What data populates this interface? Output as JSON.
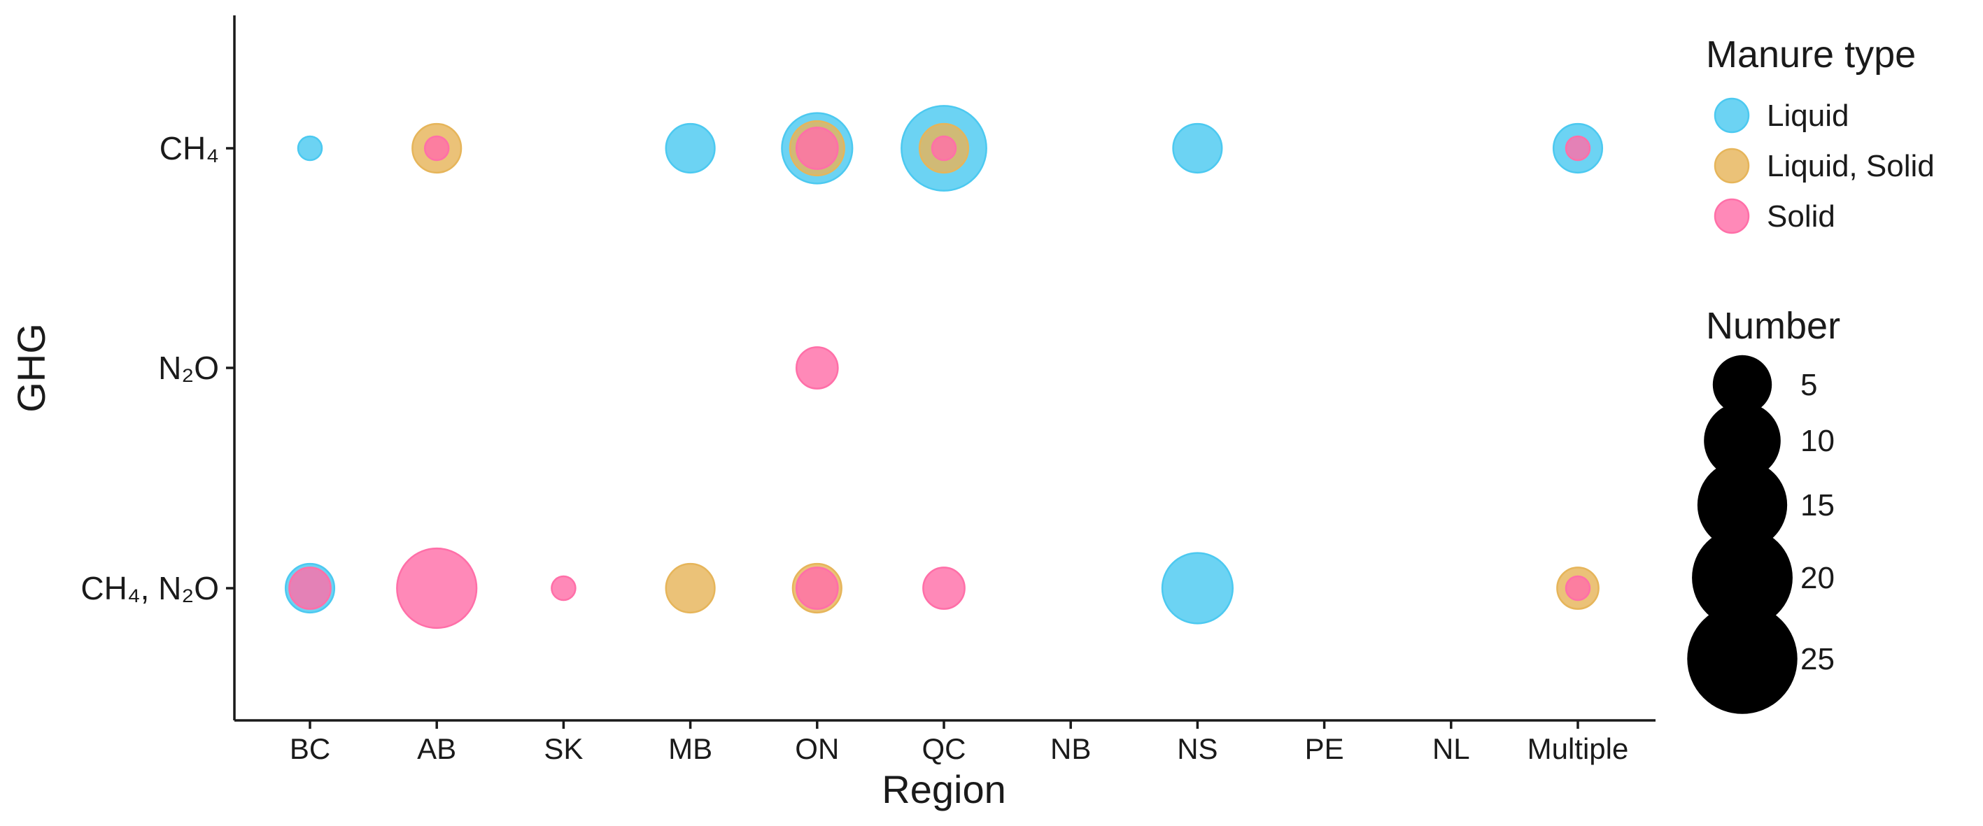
{
  "chart_data": {
    "type": "scatter",
    "subtype": "bubble",
    "xlabel": "Region",
    "ylabel": "GHG",
    "x_categories": [
      "BC",
      "AB",
      "SK",
      "MB",
      "ON",
      "QC",
      "NB",
      "NS",
      "PE",
      "NL",
      "Multiple"
    ],
    "y_categories": [
      "CH₄",
      "N₂O",
      "CH₄, N₂O"
    ],
    "grid": false,
    "legend_position": "right",
    "color_legend": {
      "title": "Manure type",
      "entries": [
        {
          "label": "Liquid",
          "color": "#4CC9F0"
        },
        {
          "label": "Liquid, Solid",
          "color": "#E6B55A"
        },
        {
          "label": "Solid",
          "color": "#FF6FA8"
        }
      ]
    },
    "size_legend": {
      "title": "Number",
      "values": [
        5,
        10,
        15,
        20,
        25
      ]
    },
    "series": [
      {
        "name": "Liquid",
        "color": "#4CC9F0",
        "points": [
          {
            "x": "BC",
            "y": "CH₄",
            "number": 1
          },
          {
            "x": "MB",
            "y": "CH₄",
            "number": 3
          },
          {
            "x": "ON",
            "y": "CH₄",
            "number": 8
          },
          {
            "x": "QC",
            "y": "CH₄",
            "number": 13
          },
          {
            "x": "NS",
            "y": "CH₄",
            "number": 3
          },
          {
            "x": "Multiple",
            "y": "CH₄",
            "number": 3
          },
          {
            "x": "BC",
            "y": "CH₄, N₂O",
            "number": 3
          },
          {
            "x": "NS",
            "y": "CH₄, N₂O",
            "number": 8
          }
        ]
      },
      {
        "name": "Liquid, Solid",
        "color": "#E6B55A",
        "points": [
          {
            "x": "AB",
            "y": "CH₄",
            "number": 3
          },
          {
            "x": "ON",
            "y": "CH₄",
            "number": 4
          },
          {
            "x": "QC",
            "y": "CH₄",
            "number": 3
          },
          {
            "x": "MB",
            "y": "CH₄, N₂O",
            "number": 3
          },
          {
            "x": "ON",
            "y": "CH₄, N₂O",
            "number": 3
          },
          {
            "x": "Multiple",
            "y": "CH₄, N₂O",
            "number": 2
          }
        ]
      },
      {
        "name": "Solid",
        "color": "#FF6FA8",
        "points": [
          {
            "x": "AB",
            "y": "CH₄",
            "number": 1
          },
          {
            "x": "ON",
            "y": "CH₄",
            "number": 2
          },
          {
            "x": "QC",
            "y": "CH₄",
            "number": 1
          },
          {
            "x": "Multiple",
            "y": "CH₄",
            "number": 1
          },
          {
            "x": "ON",
            "y": "N₂O",
            "number": 2
          },
          {
            "x": "BC",
            "y": "CH₄, N₂O",
            "number": 2
          },
          {
            "x": "AB",
            "y": "CH₄, N₂O",
            "number": 11
          },
          {
            "x": "SK",
            "y": "CH₄, N₂O",
            "number": 1
          },
          {
            "x": "ON",
            "y": "CH₄, N₂O",
            "number": 2
          },
          {
            "x": "QC",
            "y": "CH₄, N₂O",
            "number": 2
          },
          {
            "x": "Multiple",
            "y": "CH₄, N₂O",
            "number": 1
          }
        ]
      }
    ]
  }
}
